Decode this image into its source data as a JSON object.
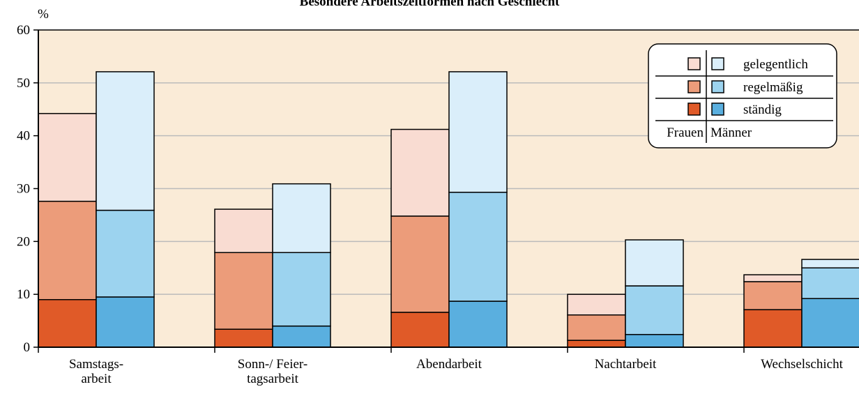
{
  "chart_data": {
    "type": "stacked-grouped-bar",
    "title": "Besondere Arbeitszeitformen nach Geschlecht",
    "y_label": "%",
    "categories": [
      "Samstags-\narbeit",
      "Sonn-/ Feier-\ntagsarbeit",
      "Abendarbeit",
      "Nachtarbeit",
      "Wechselschicht"
    ],
    "segments": [
      "ständig",
      "regelmäßig",
      "gelegentlich"
    ],
    "groups": [
      {
        "name": "Frauen",
        "colors": [
          "#e05a28",
          "#ec9c7a",
          "#f9dcd2"
        ],
        "values": [
          [
            9.0,
            3.4,
            6.6,
            1.3,
            7.1
          ],
          [
            18.6,
            14.5,
            18.2,
            4.8,
            5.3
          ],
          [
            16.6,
            8.2,
            16.4,
            3.9,
            1.3
          ]
        ]
      },
      {
        "name": "Männer",
        "colors": [
          "#5aafdf",
          "#9cd3ef",
          "#daeefa"
        ],
        "values": [
          [
            9.5,
            4.0,
            8.7,
            2.4,
            9.2
          ],
          [
            16.4,
            13.9,
            20.6,
            9.2,
            5.8
          ],
          [
            26.2,
            13.0,
            22.8,
            8.7,
            1.6
          ]
        ]
      }
    ],
    "ylim": [
      0,
      60
    ],
    "yticks": [
      0,
      10,
      20,
      30,
      40,
      50,
      60
    ],
    "grid": true,
    "legend": "top-right"
  }
}
